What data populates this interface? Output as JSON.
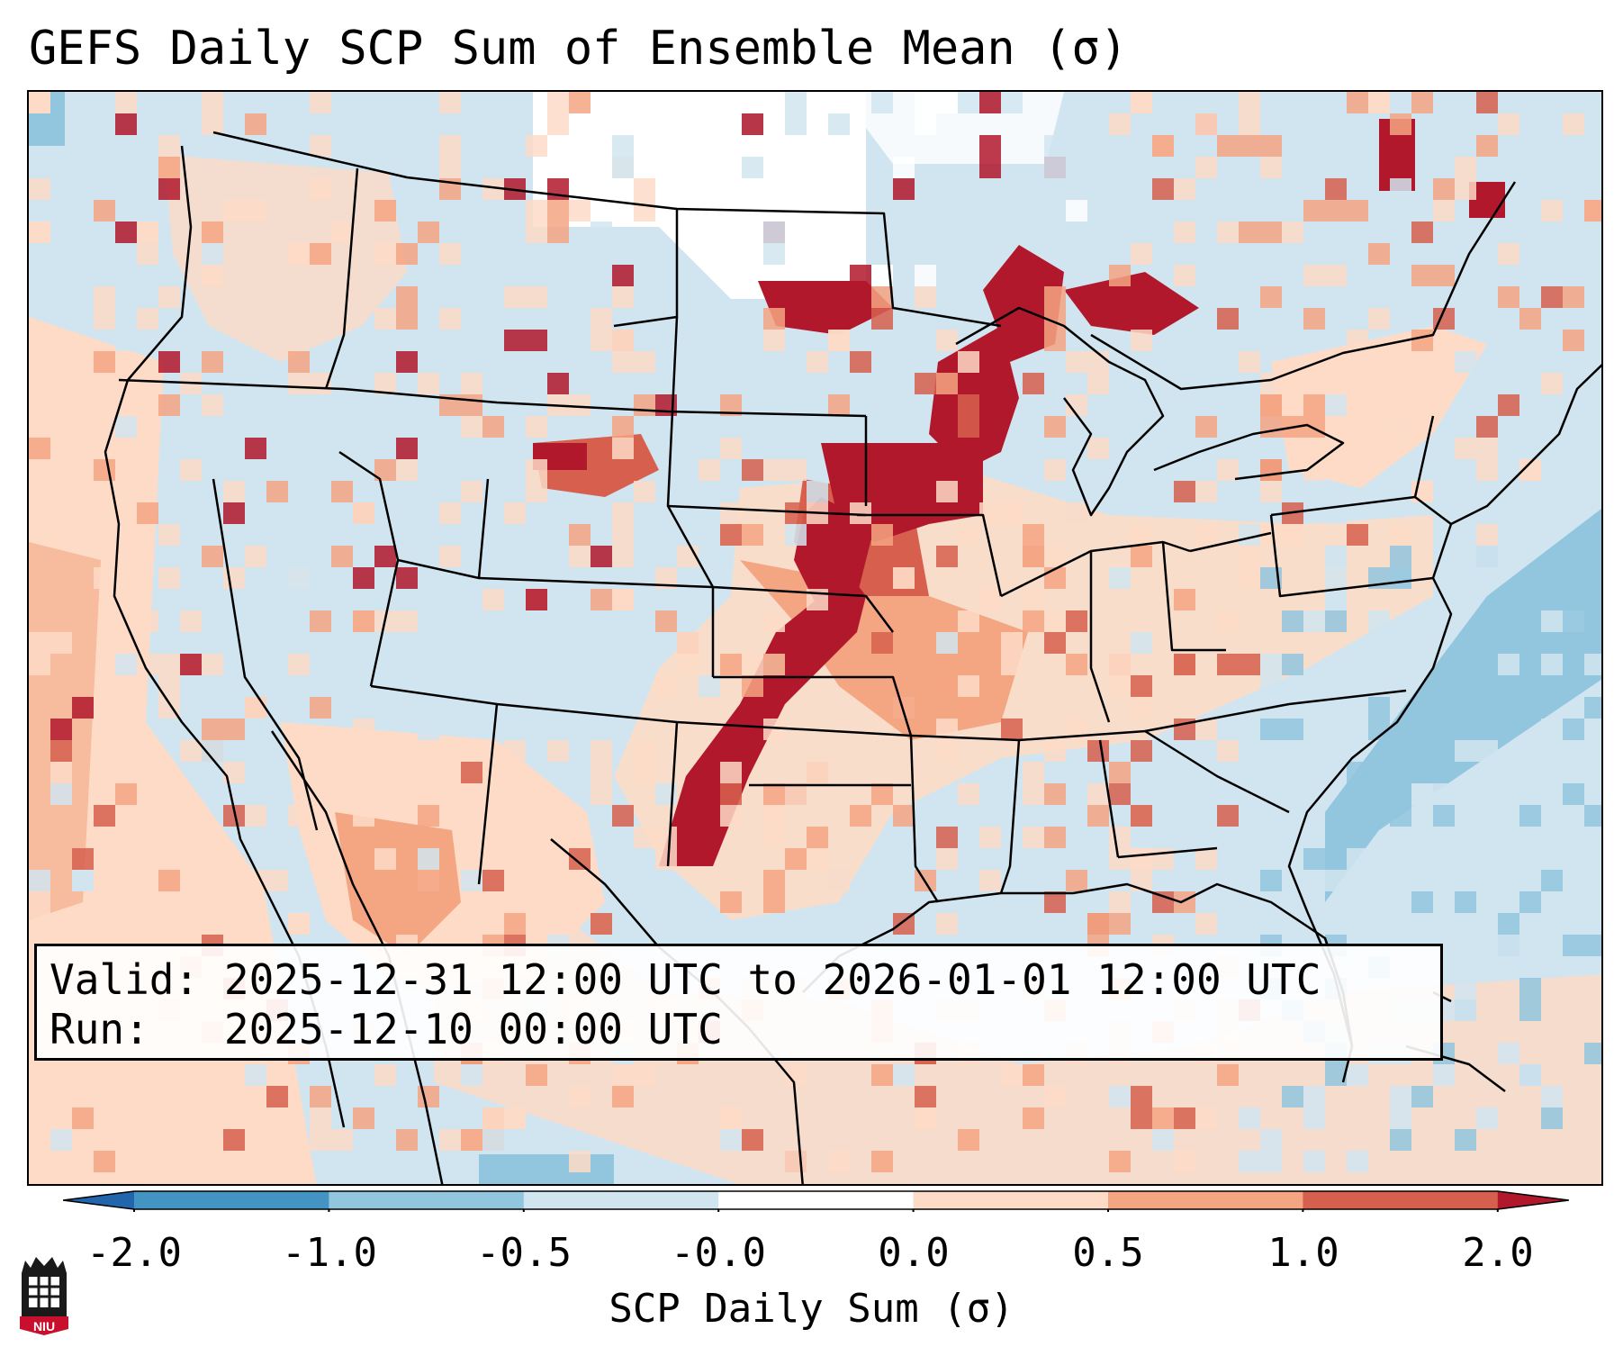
{
  "title": "GEFS Daily SCP Sum of Ensemble Mean (σ)",
  "info": {
    "valid_label": "Valid:",
    "valid_value": "2025-12-31 12:00 UTC to 2026-01-01 12:00 UTC",
    "run_label": "Run:",
    "run_value": "2025-12-10 00:00 UTC"
  },
  "colorbar": {
    "label": "SCP Daily Sum (σ)",
    "ticks": [
      "-2.0",
      "-1.0",
      "-0.5",
      "-0.0",
      "0.0",
      "0.5",
      "1.0",
      "2.0"
    ],
    "bins": [
      {
        "range": "< -2.0",
        "color": "#2166ac"
      },
      {
        "range": "-2.0 to -1.0",
        "color": "#4393c3"
      },
      {
        "range": "-1.0 to -0.5",
        "color": "#92c5de"
      },
      {
        "range": "-0.5 to -0.0",
        "color": "#d1e5f0"
      },
      {
        "range": "-0.0 to 0.0",
        "color": "#ffffff"
      },
      {
        "range": "0.0 to 0.5",
        "color": "#fddbc7"
      },
      {
        "range": "0.5 to 1.0",
        "color": "#f4a582"
      },
      {
        "range": "1.0 to 2.0",
        "color": "#d6604d"
      },
      {
        "range": "> 2.0",
        "color": "#b2182b"
      }
    ]
  },
  "logo": {
    "text": "NIU"
  }
}
